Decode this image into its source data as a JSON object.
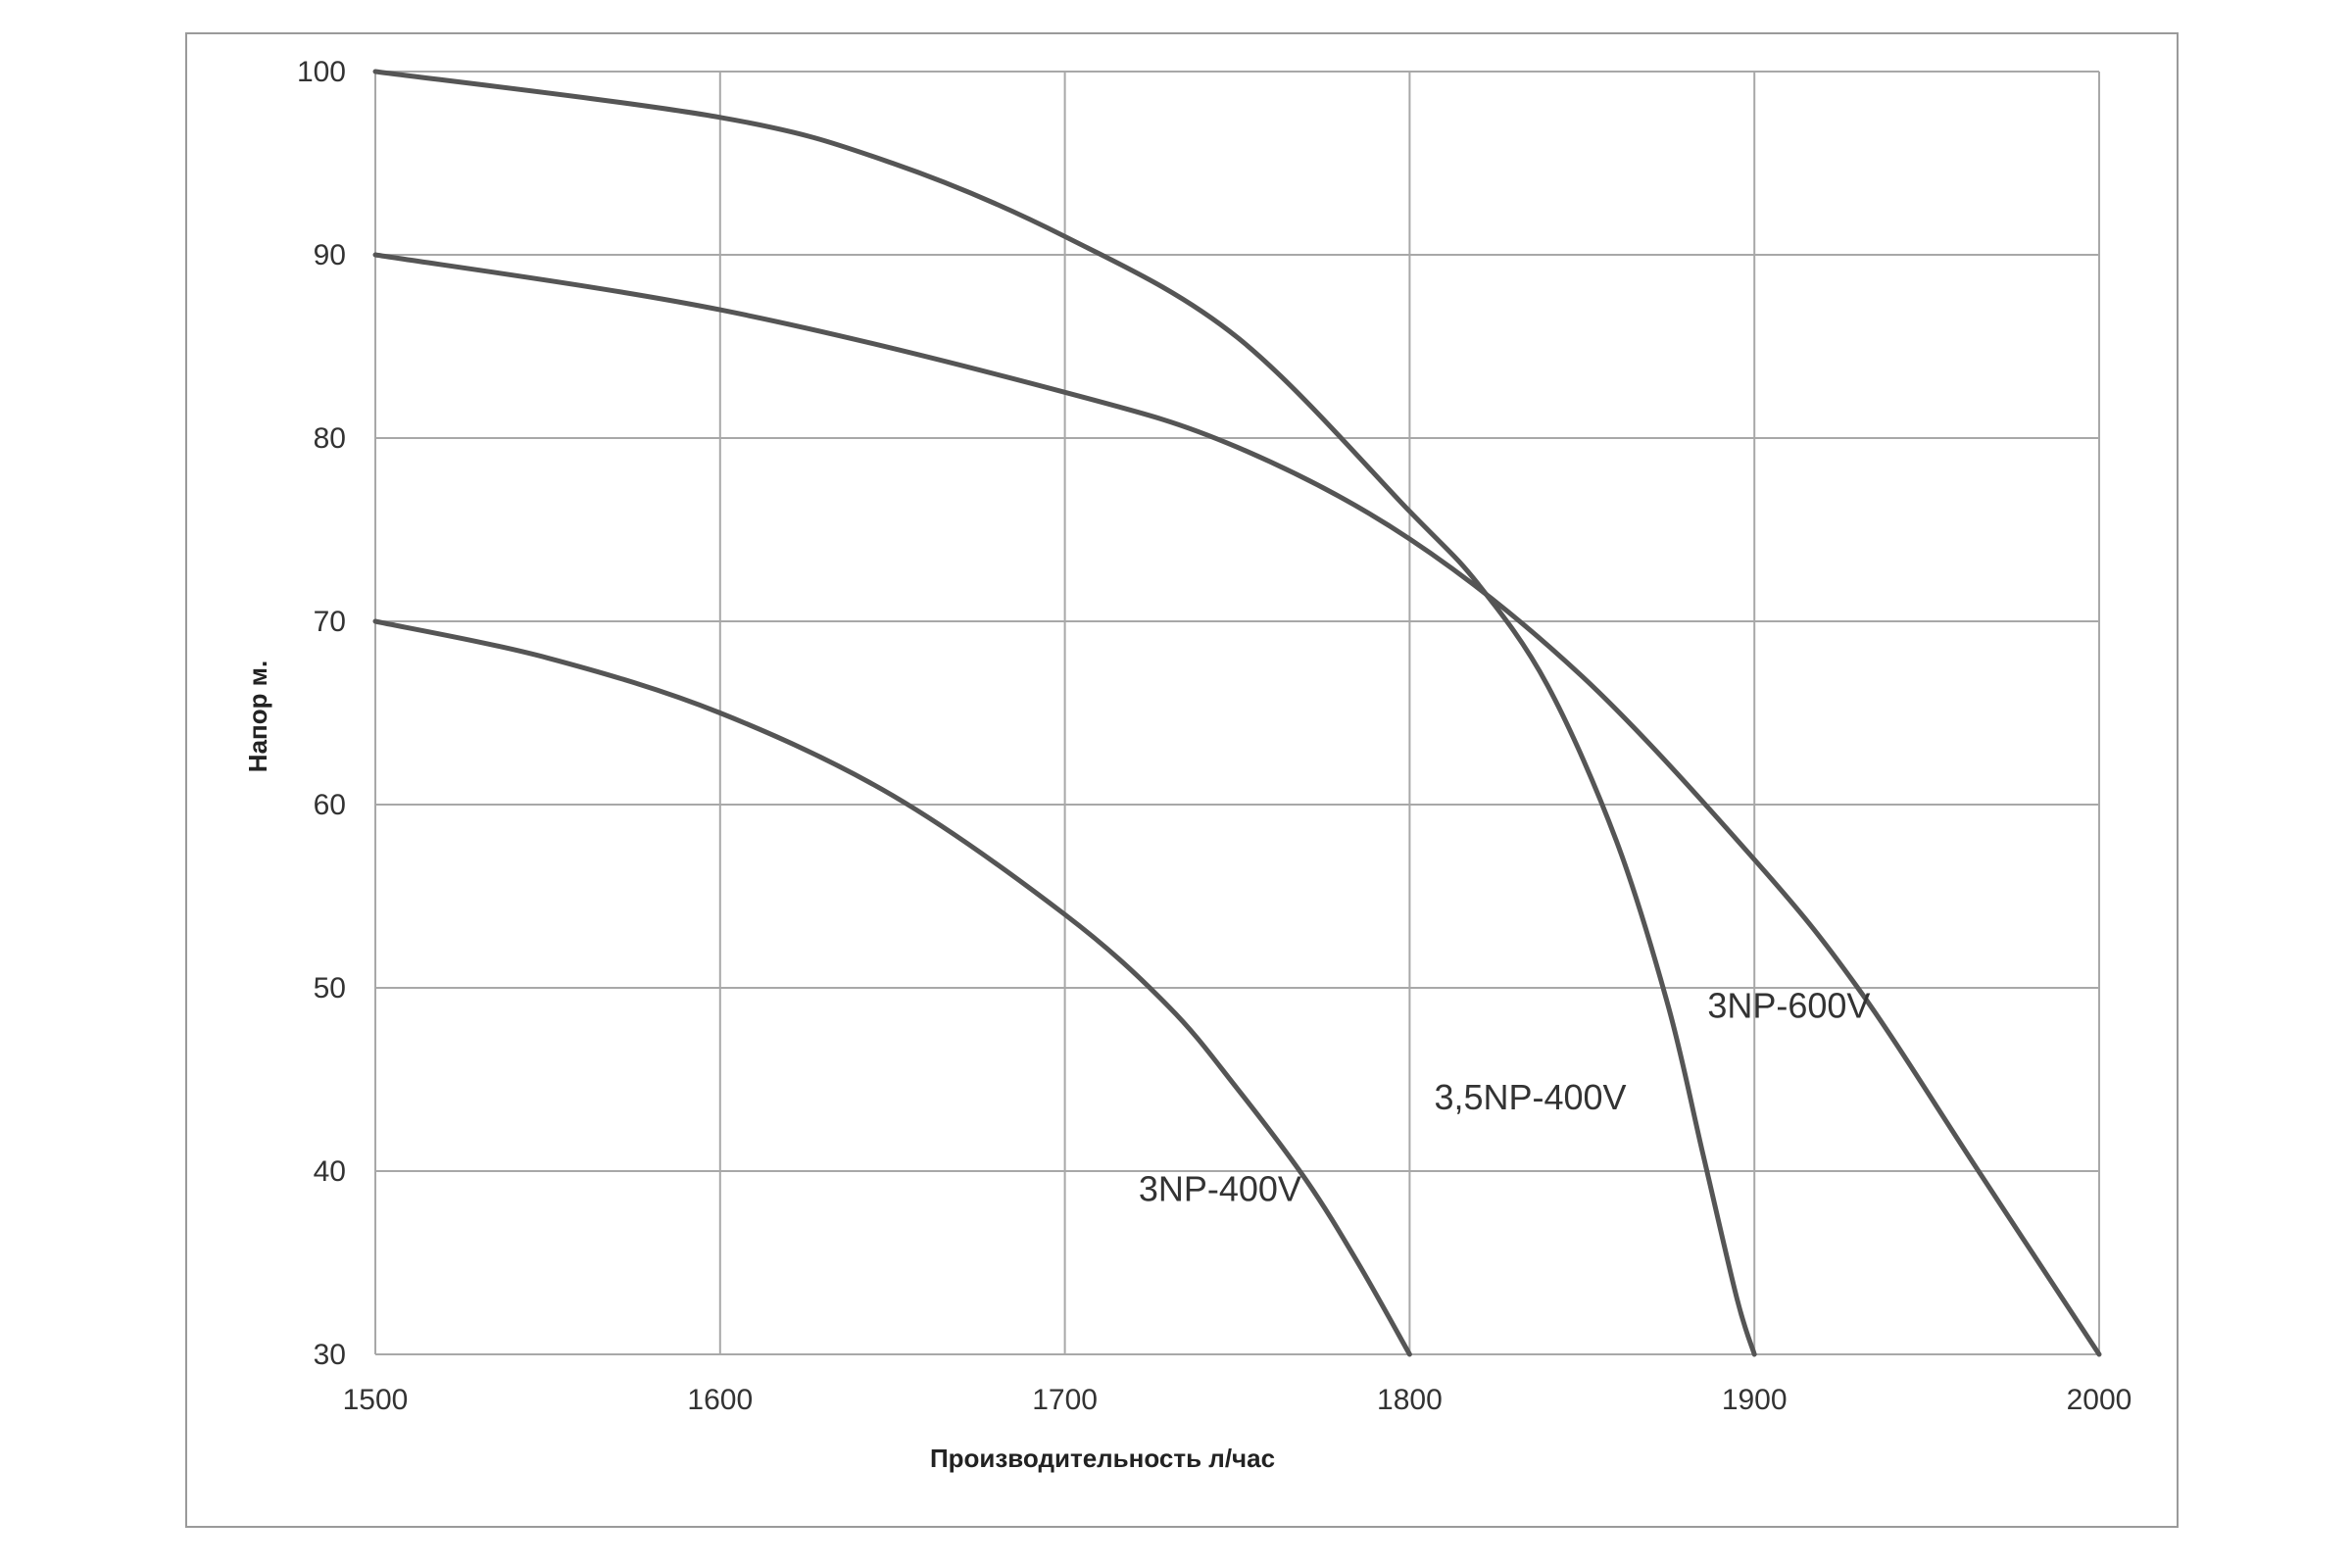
{
  "chart_data": {
    "type": "line",
    "title": "",
    "xlabel": "Производительность  л/час",
    "ylabel": "Напор м.",
    "xlim": [
      1500,
      2000
    ],
    "ylim": [
      30,
      100
    ],
    "x_ticks": [
      "1500",
      "1600",
      "1700",
      "1800",
      "1900",
      "2000"
    ],
    "y_ticks": [
      "30",
      "40",
      "50",
      "60",
      "70",
      "80",
      "90",
      "100"
    ],
    "grid": true,
    "legend": "none",
    "series": [
      {
        "name": "3NP-400V",
        "points": [
          [
            1500,
            70
          ],
          [
            1550,
            68
          ],
          [
            1600,
            65
          ],
          [
            1650,
            60.5
          ],
          [
            1700,
            54
          ],
          [
            1730,
            49
          ],
          [
            1750,
            44.5
          ],
          [
            1770,
            39.5
          ],
          [
            1785,
            35
          ],
          [
            1800,
            30
          ]
        ]
      },
      {
        "name": "3,5NP-400V",
        "points": [
          [
            1500,
            100
          ],
          [
            1600,
            97.5
          ],
          [
            1650,
            95
          ],
          [
            1700,
            91
          ],
          [
            1750,
            85.5
          ],
          [
            1800,
            76
          ],
          [
            1820,
            72
          ],
          [
            1840,
            66.5
          ],
          [
            1860,
            58
          ],
          [
            1875,
            49
          ],
          [
            1885,
            41
          ],
          [
            1895,
            33
          ],
          [
            1900,
            30
          ]
        ]
      },
      {
        "name": "3NP-600V",
        "points": [
          [
            1500,
            90
          ],
          [
            1600,
            87
          ],
          [
            1700,
            82.5
          ],
          [
            1750,
            79.5
          ],
          [
            1800,
            74.5
          ],
          [
            1850,
            67
          ],
          [
            1900,
            57
          ],
          [
            1930,
            50
          ],
          [
            1965,
            40
          ],
          [
            2000,
            30
          ]
        ]
      }
    ],
    "annotations": [
      {
        "text": "3NP-400V",
        "x": 1745,
        "y": 39
      },
      {
        "text": "3,5NP-400V",
        "x": 1835,
        "y": 44
      },
      {
        "text": "3NP-600V",
        "x": 1910,
        "y": 49
      }
    ],
    "colors": {
      "line": "#555555",
      "grid": "#a8a8a8",
      "frame": "#9a9a9a"
    }
  }
}
